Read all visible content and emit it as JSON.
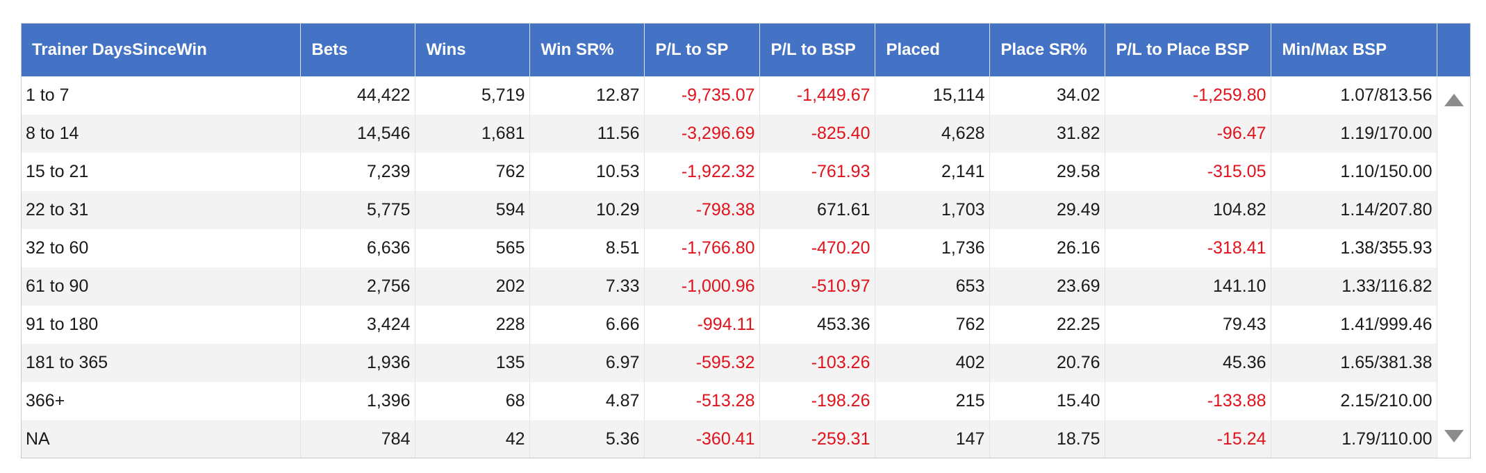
{
  "table": {
    "headers": [
      "Trainer DaysSinceWin",
      "Bets",
      "Wins",
      "Win SR%",
      "P/L to SP",
      "P/L to BSP",
      "Placed",
      "Place SR%",
      "P/L to Place BSP",
      "Min/Max BSP"
    ],
    "rows": [
      [
        "1 to 7",
        "44,422",
        "5,719",
        "12.87",
        "-9,735.07",
        "-1,449.67",
        "15,114",
        "34.02",
        "-1,259.80",
        "1.07/813.56"
      ],
      [
        "8 to 14",
        "14,546",
        "1,681",
        "11.56",
        "-3,296.69",
        "-825.40",
        "4,628",
        "31.82",
        "-96.47",
        "1.19/170.00"
      ],
      [
        "15 to 21",
        "7,239",
        "762",
        "10.53",
        "-1,922.32",
        "-761.93",
        "2,141",
        "29.58",
        "-315.05",
        "1.10/150.00"
      ],
      [
        "22 to 31",
        "5,775",
        "594",
        "10.29",
        "-798.38",
        "671.61",
        "1,703",
        "29.49",
        "104.82",
        "1.14/207.80"
      ],
      [
        "32 to 60",
        "6,636",
        "565",
        "8.51",
        "-1,766.80",
        "-470.20",
        "1,736",
        "26.16",
        "-318.41",
        "1.38/355.93"
      ],
      [
        "61 to 90",
        "2,756",
        "202",
        "7.33",
        "-1,000.96",
        "-510.97",
        "653",
        "23.69",
        "141.10",
        "1.33/116.82"
      ],
      [
        "91 to 180",
        "3,424",
        "228",
        "6.66",
        "-994.11",
        "453.36",
        "762",
        "22.25",
        "79.43",
        "1.41/999.46"
      ],
      [
        "181 to 365",
        "1,936",
        "135",
        "6.97",
        "-595.32",
        "-103.26",
        "402",
        "20.76",
        "45.36",
        "1.65/381.38"
      ],
      [
        "366+",
        "1,396",
        "68",
        "4.87",
        "-513.28",
        "-198.26",
        "215",
        "15.40",
        "-133.88",
        "2.15/210.00"
      ],
      [
        "NA",
        "784",
        "42",
        "5.36",
        "-360.41",
        "-259.31",
        "147",
        "18.75",
        "-15.24",
        "1.79/110.00"
      ]
    ]
  },
  "colors": {
    "header_bg": "#4472c4",
    "header_text": "#ffffff",
    "negative": "#e0121b",
    "row_alt": "#f3f3f3"
  },
  "scrollbar": {
    "up_icon": "triangle-up-icon",
    "down_icon": "triangle-down-icon"
  }
}
